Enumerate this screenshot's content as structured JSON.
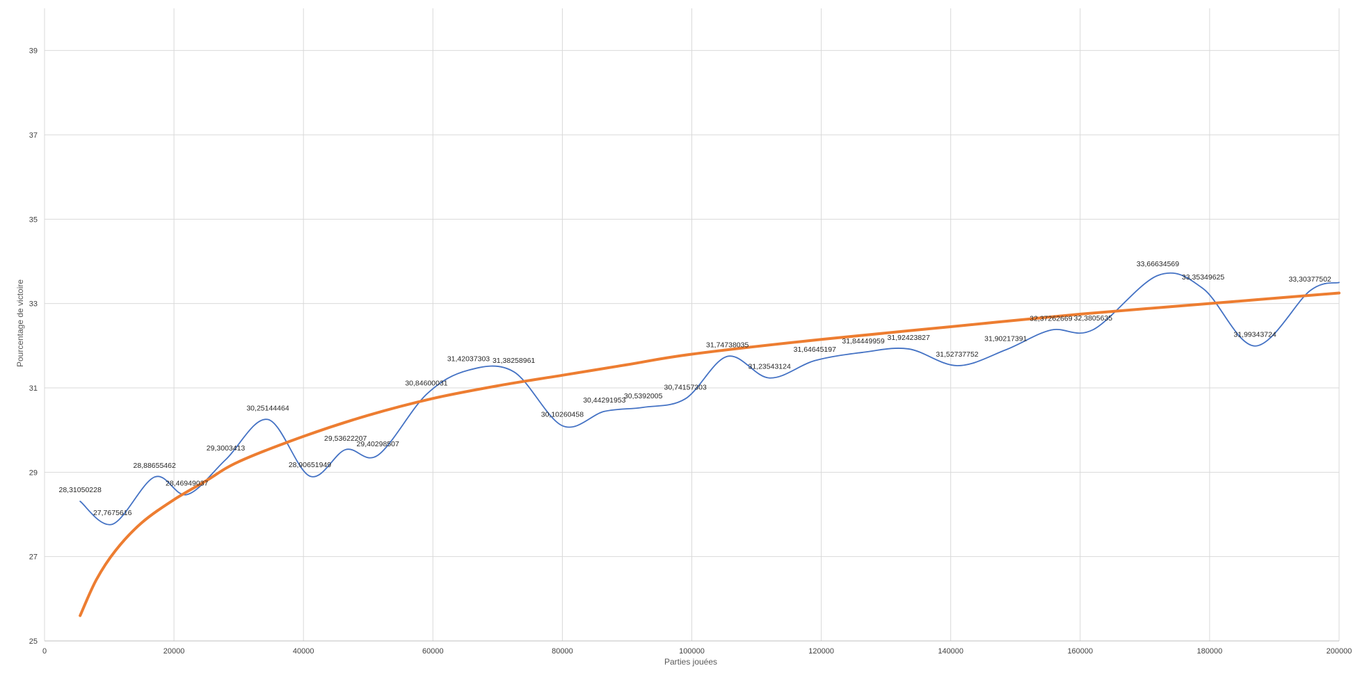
{
  "chart_data": {
    "type": "line",
    "title": "",
    "xlabel": "Parties jouées",
    "ylabel": "Pourcentage de victoire",
    "xlim": [
      0,
      200000
    ],
    "ylim": [
      25,
      40
    ],
    "x_ticks": [
      0,
      20000,
      40000,
      60000,
      80000,
      100000,
      120000,
      140000,
      160000,
      180000,
      200000
    ],
    "x_tick_labels": [
      "0",
      "20000",
      "40000",
      "60000",
      "80000",
      "100000",
      "120000",
      "140000",
      "160000",
      "180000",
      "200000"
    ],
    "y_ticks": [
      25,
      27,
      29,
      31,
      33,
      35,
      37,
      39
    ],
    "y_tick_labels": [
      "25",
      "27",
      "29",
      "31",
      "33",
      "35",
      "37",
      "39"
    ],
    "grid": true,
    "series": [
      {
        "color": "#4472C4",
        "smooth": true,
        "points": [
          {
            "x": 5500,
            "y": 28.31050228,
            "label": "28,31050228"
          },
          {
            "x": 10500,
            "y": 27.7675616,
            "label": "27,7675616"
          },
          {
            "x": 17000,
            "y": 28.88655462,
            "label": "28,88655462"
          },
          {
            "x": 22000,
            "y": 28.46949037,
            "label": "28,46949037"
          },
          {
            "x": 28000,
            "y": 29.3003413,
            "label": "29,3003413"
          },
          {
            "x": 34500,
            "y": 30.25144464,
            "label": "30,25144464"
          },
          {
            "x": 41000,
            "y": 28.90651949,
            "label": "28,90651949"
          },
          {
            "x": 46500,
            "y": 29.53622207,
            "label": "29,53622207"
          },
          {
            "x": 51500,
            "y": 29.40298507,
            "label": "29,40298507"
          },
          {
            "x": 59000,
            "y": 30.84600031,
            "label": "30,84600031"
          },
          {
            "x": 65500,
            "y": 31.42037303,
            "label": "31,42037303"
          },
          {
            "x": 72500,
            "y": 31.38258961,
            "label": "31,38258961"
          },
          {
            "x": 80000,
            "y": 30.10260458,
            "label": "30,10260458"
          },
          {
            "x": 86500,
            "y": 30.44291953,
            "label": "30,44291953"
          },
          {
            "x": 92500,
            "y": 30.5392005,
            "label": "30,5392005"
          },
          {
            "x": 99000,
            "y": 30.74157303,
            "label": "30,74157303"
          },
          {
            "x": 105500,
            "y": 31.74738035,
            "label": "31,74738035"
          },
          {
            "x": 112000,
            "y": 31.23543124,
            "label": "31,23543124"
          },
          {
            "x": 119000,
            "y": 31.64645197,
            "label": "31,64645197"
          },
          {
            "x": 126500,
            "y": 31.84449959,
            "label": "31,84449959"
          },
          {
            "x": 133500,
            "y": 31.92423827,
            "label": "31,92423827"
          },
          {
            "x": 141000,
            "y": 31.52737752,
            "label": "31,52737752"
          },
          {
            "x": 148500,
            "y": 31.90217391,
            "label": "31,90217391"
          },
          {
            "x": 155500,
            "y": 32.37262669,
            "label": "32,37262669"
          },
          {
            "x": 162000,
            "y": 32.3805635,
            "label": "32,3805635"
          },
          {
            "x": 172000,
            "y": 33.66634569,
            "label": "33,66634569"
          },
          {
            "x": 179000,
            "y": 33.35349625,
            "label": "33,35349625"
          },
          {
            "x": 187000,
            "y": 31.99343724,
            "label": "31,99343724"
          },
          {
            "x": 195500,
            "y": 33.30377502,
            "label": "33,30377502"
          },
          {
            "x": 200000,
            "y": 33.5,
            "label": ""
          }
        ]
      },
      {
        "color": "#ED7D31",
        "smooth": true,
        "trendline": true,
        "points": [
          {
            "x": 5500,
            "y": 25.6
          },
          {
            "x": 8000,
            "y": 26.45
          },
          {
            "x": 11000,
            "y": 27.15
          },
          {
            "x": 15000,
            "y": 27.8
          },
          {
            "x": 20000,
            "y": 28.35
          },
          {
            "x": 25000,
            "y": 28.8
          },
          {
            "x": 30000,
            "y": 29.25
          },
          {
            "x": 40000,
            "y": 29.85
          },
          {
            "x": 50000,
            "y": 30.35
          },
          {
            "x": 60000,
            "y": 30.75
          },
          {
            "x": 70000,
            "y": 31.05
          },
          {
            "x": 80000,
            "y": 31.3
          },
          {
            "x": 90000,
            "y": 31.55
          },
          {
            "x": 100000,
            "y": 31.8
          },
          {
            "x": 120000,
            "y": 32.15
          },
          {
            "x": 140000,
            "y": 32.45
          },
          {
            "x": 160000,
            "y": 32.75
          },
          {
            "x": 180000,
            "y": 33.0
          },
          {
            "x": 200000,
            "y": 33.25
          }
        ]
      }
    ]
  }
}
